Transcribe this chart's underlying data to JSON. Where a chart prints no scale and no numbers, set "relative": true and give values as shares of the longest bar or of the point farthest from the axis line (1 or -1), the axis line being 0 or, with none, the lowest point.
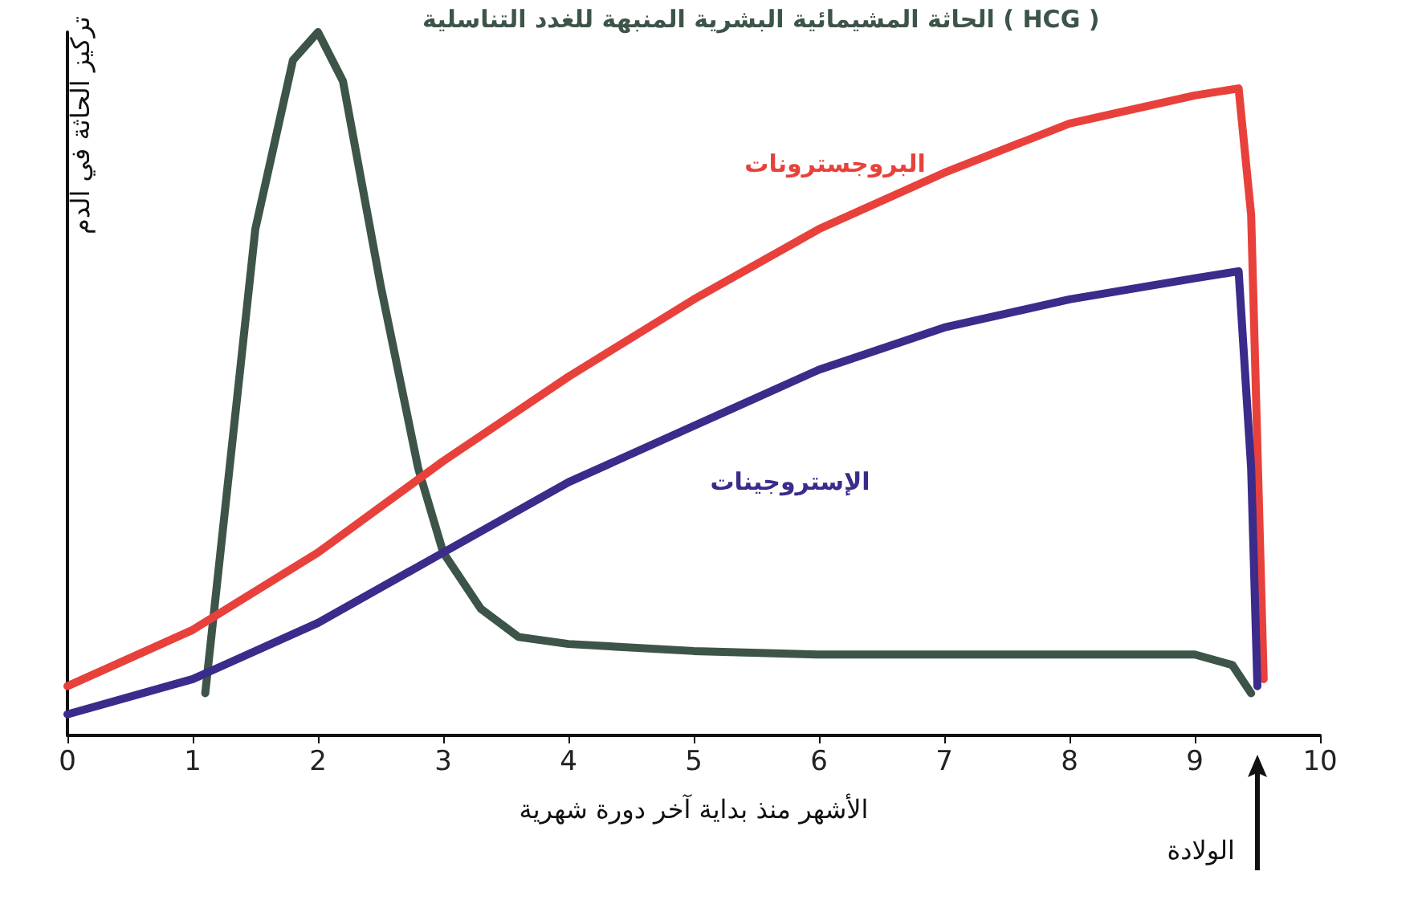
{
  "chart_data": {
    "type": "line",
    "relative": true,
    "xlabel": "الأشهر منذ بداية آخر دورة شهرية",
    "ylabel": "تركيز الحاثة في الدم",
    "xlim": [
      0,
      10
    ],
    "xticks": [
      0,
      1,
      2,
      3,
      4,
      5,
      6,
      7,
      8,
      9,
      10
    ],
    "grid": false,
    "legend": false,
    "marker": "none",
    "line_style": "solid",
    "series": [
      {
        "name": "الحاثة المشيمائية البشرية المنبهة للغدد التناسلية ( HCG )",
        "color": "#3d5449",
        "x": [
          1.1,
          1.5,
          1.8,
          2,
          2.2,
          2.5,
          2.8,
          3,
          3.3,
          3.6,
          4,
          5,
          6,
          7,
          8,
          9,
          9.3,
          9.45
        ],
        "values": [
          0.06,
          0.72,
          0.96,
          1,
          0.93,
          0.64,
          0.38,
          0.26,
          0.18,
          0.14,
          0.13,
          0.12,
          0.115,
          0.115,
          0.115,
          0.115,
          0.1,
          0.06
        ]
      },
      {
        "name": "البروجسترونات",
        "color": "#e8413c",
        "x": [
          0,
          1,
          2,
          3,
          4,
          5,
          6,
          7,
          8,
          9,
          9.35,
          9.45,
          9.55
        ],
        "values": [
          0.07,
          0.15,
          0.26,
          0.39,
          0.51,
          0.62,
          0.72,
          0.8,
          0.87,
          0.91,
          0.92,
          0.74,
          0.08
        ]
      },
      {
        "name": "الإستروجينات",
        "color": "#3b2b8a",
        "x": [
          0,
          1,
          2,
          3,
          4,
          5,
          6,
          7,
          8,
          9,
          9.35,
          9.45,
          9.5
        ],
        "values": [
          0.03,
          0.08,
          0.16,
          0.26,
          0.36,
          0.44,
          0.52,
          0.58,
          0.62,
          0.65,
          0.66,
          0.38,
          0.07
        ]
      }
    ],
    "annotations": [
      "الولادة"
    ]
  }
}
